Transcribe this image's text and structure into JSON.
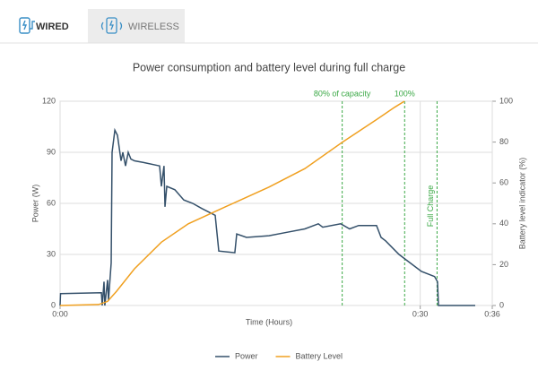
{
  "tabs": [
    {
      "label": "WIRED",
      "active": true
    },
    {
      "label": "WIRELESS",
      "active": false
    }
  ],
  "chart_data": {
    "type": "line",
    "title": "Power consumption and battery level during full charge",
    "x_label": "Time (Hours)",
    "y_label": "Power (W)",
    "y2_label": "Battery level indicator (%)",
    "xlim": [
      0,
      36
    ],
    "xticks": [
      {
        "value": 0,
        "label": "0:00"
      },
      {
        "value": 30,
        "label": "0:30"
      },
      {
        "value": 36,
        "label": "0:36"
      }
    ],
    "ylim": [
      0,
      120
    ],
    "yticks": [
      0,
      30,
      60,
      90,
      120
    ],
    "y2lim": [
      0,
      100
    ],
    "y2ticks": [
      0,
      20,
      40,
      60,
      80,
      100
    ],
    "grid": true,
    "legend": "bottom",
    "series": [
      {
        "name": "Power",
        "color": "#34506a",
        "x": [
          0,
          0.04,
          3.44,
          3.51,
          3.66,
          3.73,
          3.96,
          4.03,
          4.26,
          4.33,
          4.56,
          4.78,
          5.08,
          5.23,
          5.45,
          5.68,
          5.9,
          6.2,
          6.95,
          8.29,
          8.44,
          8.66,
          8.74,
          8.89,
          9.56,
          10.31,
          11.05,
          11.8,
          12.92,
          13.22,
          14.56,
          14.71,
          15.53,
          17.4,
          18.89,
          20.39,
          21.51,
          21.88,
          23.38,
          24.12,
          24.87,
          26.36,
          26.74,
          27.11,
          28.23,
          28.98,
          30.1,
          31.2,
          31.44,
          31.52,
          34.58
        ],
        "values": [
          0,
          7,
          7.5,
          0,
          14,
          0,
          15,
          3,
          25,
          90,
          103,
          100,
          85,
          90,
          82,
          90,
          86,
          85,
          84,
          82,
          70,
          82,
          58,
          70,
          68,
          62,
          60,
          57,
          53,
          32,
          31,
          42,
          40,
          41,
          43,
          45,
          48,
          46,
          48,
          45,
          47,
          47,
          40,
          38,
          30,
          26,
          20,
          17,
          14,
          0,
          0
        ]
      },
      {
        "name": "Battery Level",
        "color": "#f0a020",
        "axis": "y2",
        "x": [
          0,
          3.21,
          3.96,
          4.71,
          6.2,
          8.44,
          10.68,
          13.29,
          15.16,
          17.4,
          20.39,
          23.53,
          26.36,
          27.86,
          28.68
        ],
        "values": [
          0,
          0.5,
          2,
          7,
          18,
          31,
          40,
          47,
          52,
          58,
          67,
          80,
          91,
          97,
          100
        ]
      }
    ],
    "annotations": [
      {
        "x": 23.5,
        "label": "80% of capacity",
        "position": "top"
      },
      {
        "x": 28.7,
        "label": "100%",
        "position": "top"
      },
      {
        "x": 31.4,
        "label": "Full Charge",
        "position": "side"
      }
    ],
    "annotation_color": "#3aa845"
  }
}
